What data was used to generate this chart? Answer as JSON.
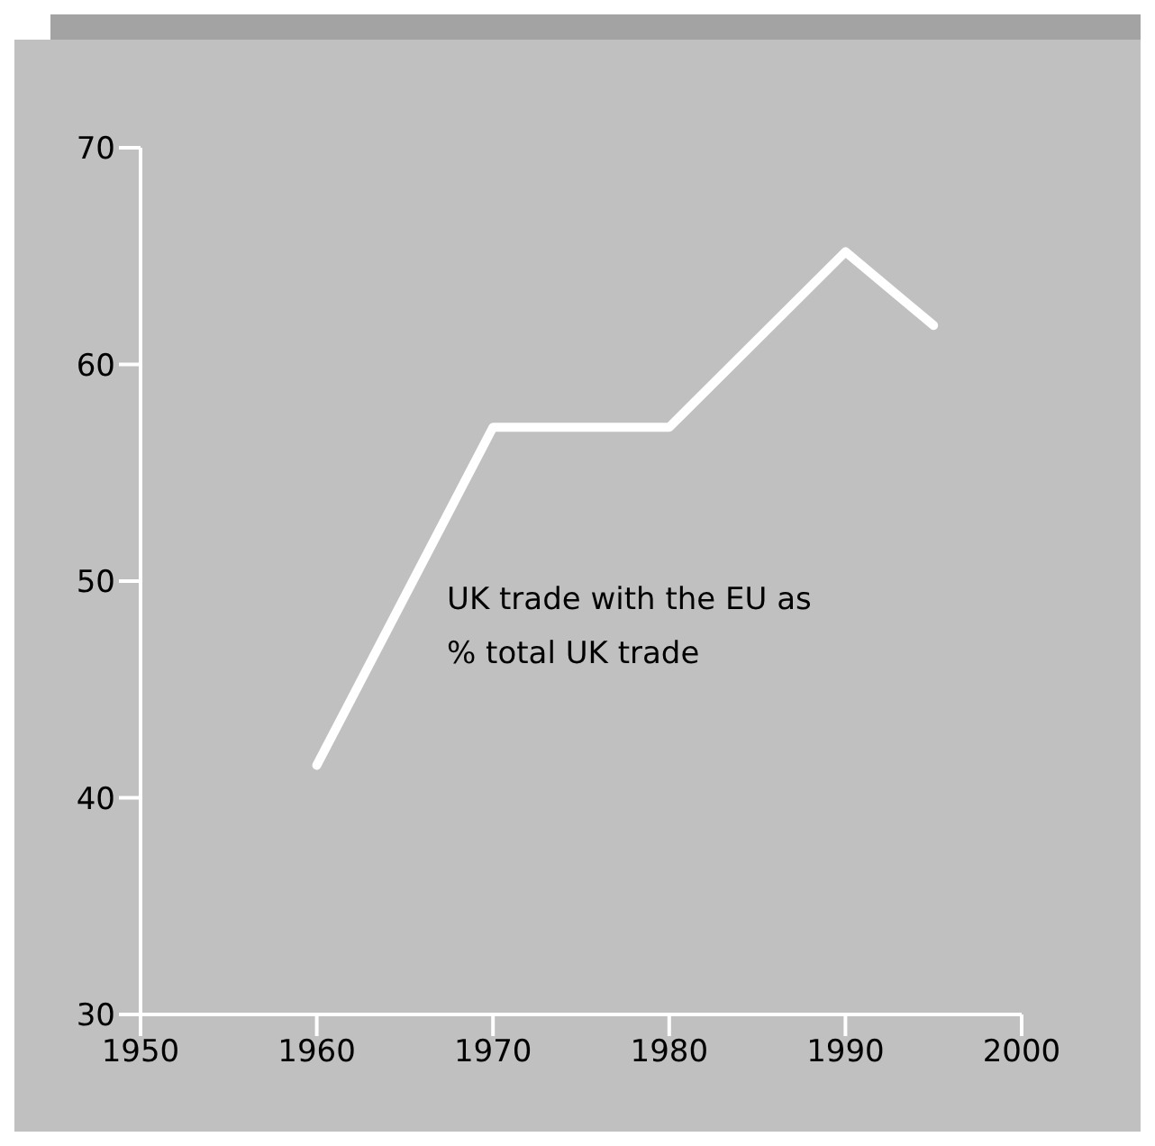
{
  "chart_data": {
    "type": "line",
    "x": [
      1960,
      1970,
      1980,
      1990,
      1995
    ],
    "series": [
      {
        "name": "UK trade with the EU as % total UK trade",
        "color": "#ffffff",
        "values": [
          41.5,
          57.1,
          57.1,
          65.2,
          61.8
        ]
      }
    ],
    "xlim": [
      1950,
      2000
    ],
    "xticks": [
      1950,
      1960,
      1970,
      1980,
      1990,
      2000
    ],
    "ylim": [
      30,
      70
    ],
    "yticks": [
      30,
      40,
      50,
      60,
      70
    ],
    "grid": false,
    "marker": "none",
    "line_style": "solid"
  }
}
